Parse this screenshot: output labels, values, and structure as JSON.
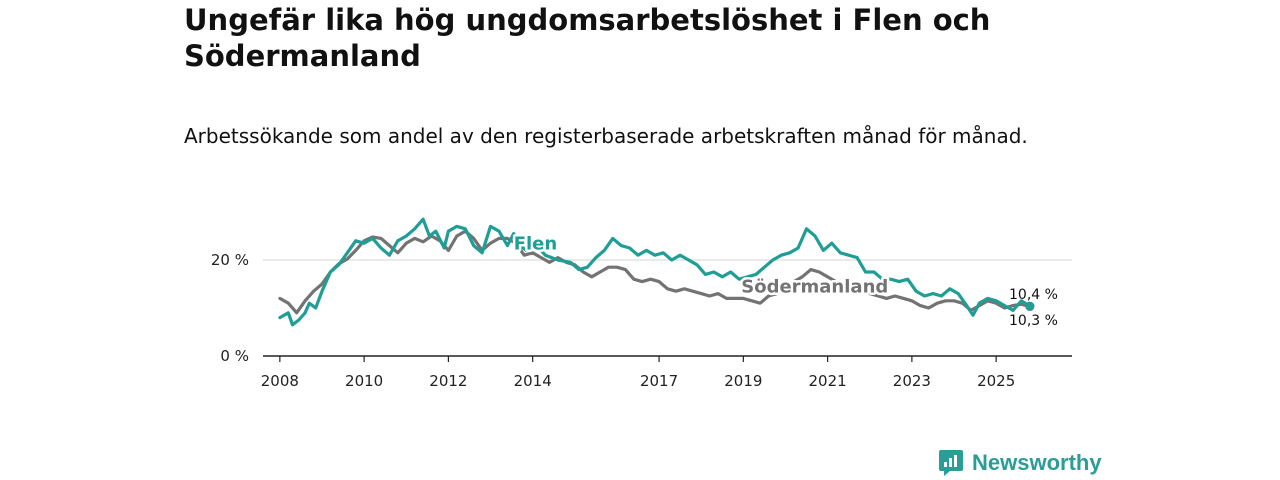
{
  "title": "Ungefär lika hög ungdomsarbetslöshet i Flen och Södermanland",
  "subtitle": "Arbetssökande som andel av den registerbaserade arbetskraften månad för månad.",
  "brand": {
    "name": "Newsworthy",
    "icon": "newsworthy-logo-icon",
    "color": "#2a9d96"
  },
  "chart_data": {
    "type": "line",
    "title": "Ungefär lika hög ungdomsarbetslöshet i Flen och Södermanland",
    "xlabel": "",
    "ylabel": "",
    "xlim": [
      2007.6,
      2026.8
    ],
    "ylim": [
      0,
      30
    ],
    "y_ticks": [
      {
        "value": 0,
        "label": "0 %"
      },
      {
        "value": 20,
        "label": "20 %"
      }
    ],
    "x_ticks": [
      {
        "value": 2008,
        "label": "2008"
      },
      {
        "value": 2010,
        "label": "2010"
      },
      {
        "value": 2012,
        "label": "2012"
      },
      {
        "value": 2014,
        "label": "2014"
      },
      {
        "value": 2017,
        "label": "2017"
      },
      {
        "value": 2019,
        "label": "2019"
      },
      {
        "value": 2021,
        "label": "2021"
      },
      {
        "value": 2023,
        "label": "2023"
      },
      {
        "value": 2025,
        "label": "2025"
      }
    ],
    "grid": true,
    "series": [
      {
        "name": "Södermanland",
        "label": "Södermanland",
        "color": "#737373",
        "end_label": "10,3 %",
        "points": [
          [
            2008.0,
            12.0
          ],
          [
            2008.2,
            11.0
          ],
          [
            2008.4,
            9.0
          ],
          [
            2008.6,
            11.5
          ],
          [
            2008.8,
            13.5
          ],
          [
            2009.0,
            15.0
          ],
          [
            2009.2,
            17.5
          ],
          [
            2009.4,
            19.2
          ],
          [
            2009.6,
            20.2
          ],
          [
            2009.8,
            22.0
          ],
          [
            2010.0,
            24.0
          ],
          [
            2010.2,
            24.8
          ],
          [
            2010.4,
            24.5
          ],
          [
            2010.6,
            23.0
          ],
          [
            2010.8,
            21.5
          ],
          [
            2011.0,
            23.5
          ],
          [
            2011.2,
            24.5
          ],
          [
            2011.4,
            23.8
          ],
          [
            2011.6,
            25.0
          ],
          [
            2011.8,
            24.0
          ],
          [
            2012.0,
            22.0
          ],
          [
            2012.2,
            25.0
          ],
          [
            2012.4,
            26.0
          ],
          [
            2012.6,
            24.5
          ],
          [
            2012.8,
            22.0
          ],
          [
            2013.0,
            23.5
          ],
          [
            2013.2,
            24.5
          ],
          [
            2013.4,
            24.5
          ],
          [
            2013.6,
            23.5
          ],
          [
            2013.8,
            21.0
          ],
          [
            2014.0,
            21.5
          ],
          [
            2014.2,
            20.5
          ],
          [
            2014.4,
            19.5
          ],
          [
            2014.6,
            20.5
          ],
          [
            2014.8,
            19.5
          ],
          [
            2015.0,
            19.0
          ],
          [
            2015.2,
            17.5
          ],
          [
            2015.4,
            16.5
          ],
          [
            2015.6,
            17.5
          ],
          [
            2015.8,
            18.5
          ],
          [
            2016.0,
            18.5
          ],
          [
            2016.2,
            18.0
          ],
          [
            2016.4,
            16.0
          ],
          [
            2016.6,
            15.5
          ],
          [
            2016.8,
            16.0
          ],
          [
            2017.0,
            15.5
          ],
          [
            2017.2,
            14.0
          ],
          [
            2017.4,
            13.5
          ],
          [
            2017.6,
            14.0
          ],
          [
            2017.8,
            13.5
          ],
          [
            2018.0,
            13.0
          ],
          [
            2018.2,
            12.5
          ],
          [
            2018.4,
            13.0
          ],
          [
            2018.6,
            12.0
          ],
          [
            2018.8,
            12.0
          ],
          [
            2019.0,
            12.0
          ],
          [
            2019.2,
            11.5
          ],
          [
            2019.4,
            11.0
          ],
          [
            2019.6,
            12.5
          ],
          [
            2019.8,
            13.0
          ],
          [
            2020.0,
            14.0
          ],
          [
            2020.2,
            15.5
          ],
          [
            2020.4,
            16.5
          ],
          [
            2020.6,
            18.0
          ],
          [
            2020.8,
            17.5
          ],
          [
            2021.0,
            16.5
          ],
          [
            2021.2,
            15.5
          ],
          [
            2021.4,
            14.5
          ],
          [
            2021.6,
            14.0
          ],
          [
            2021.8,
            13.5
          ],
          [
            2022.0,
            13.0
          ],
          [
            2022.2,
            12.5
          ],
          [
            2022.4,
            12.0
          ],
          [
            2022.6,
            12.5
          ],
          [
            2022.8,
            12.0
          ],
          [
            2023.0,
            11.5
          ],
          [
            2023.2,
            10.5
          ],
          [
            2023.4,
            10.0
          ],
          [
            2023.6,
            11.0
          ],
          [
            2023.8,
            11.5
          ],
          [
            2024.0,
            11.5
          ],
          [
            2024.2,
            11.0
          ],
          [
            2024.4,
            9.5
          ],
          [
            2024.6,
            10.5
          ],
          [
            2024.8,
            11.5
          ],
          [
            2025.0,
            11.0
          ],
          [
            2025.2,
            10.0
          ],
          [
            2025.4,
            10.5
          ],
          [
            2025.6,
            10.8
          ],
          [
            2025.8,
            10.3
          ]
        ]
      },
      {
        "name": "Flen",
        "label": "Flen",
        "color": "#1f9e96",
        "end_label": "10,4 %",
        "points": [
          [
            2008.0,
            8.0
          ],
          [
            2008.2,
            9.0
          ],
          [
            2008.3,
            6.5
          ],
          [
            2008.45,
            7.5
          ],
          [
            2008.6,
            9.0
          ],
          [
            2008.7,
            11.0
          ],
          [
            2008.85,
            10.0
          ],
          [
            2009.0,
            13.5
          ],
          [
            2009.2,
            17.5
          ],
          [
            2009.4,
            19.0
          ],
          [
            2009.6,
            21.5
          ],
          [
            2009.8,
            24.0
          ],
          [
            2010.0,
            23.5
          ],
          [
            2010.2,
            24.5
          ],
          [
            2010.4,
            22.5
          ],
          [
            2010.6,
            21.0
          ],
          [
            2010.8,
            24.0
          ],
          [
            2011.0,
            25.0
          ],
          [
            2011.2,
            26.5
          ],
          [
            2011.4,
            28.5
          ],
          [
            2011.55,
            25.0
          ],
          [
            2011.7,
            26.0
          ],
          [
            2011.9,
            22.5
          ],
          [
            2012.0,
            26.0
          ],
          [
            2012.2,
            27.0
          ],
          [
            2012.4,
            26.5
          ],
          [
            2012.6,
            23.0
          ],
          [
            2012.8,
            21.5
          ],
          [
            2013.0,
            27.0
          ],
          [
            2013.2,
            26.0
          ],
          [
            2013.4,
            23.0
          ],
          [
            2013.55,
            25.5
          ],
          [
            2013.7,
            23.0
          ],
          [
            2013.85,
            22.0
          ],
          [
            2014.0,
            24.0
          ],
          [
            2014.3,
            21.0
          ],
          [
            2014.6,
            20.0
          ],
          [
            2014.9,
            19.5
          ],
          [
            2015.1,
            18.0
          ],
          [
            2015.3,
            18.5
          ],
          [
            2015.5,
            20.5
          ],
          [
            2015.7,
            22.0
          ],
          [
            2015.9,
            24.5
          ],
          [
            2016.1,
            23.0
          ],
          [
            2016.3,
            22.5
          ],
          [
            2016.5,
            21.0
          ],
          [
            2016.7,
            22.0
          ],
          [
            2016.9,
            21.0
          ],
          [
            2017.1,
            21.5
          ],
          [
            2017.3,
            20.0
          ],
          [
            2017.5,
            21.0
          ],
          [
            2017.7,
            20.0
          ],
          [
            2017.9,
            19.0
          ],
          [
            2018.1,
            17.0
          ],
          [
            2018.3,
            17.5
          ],
          [
            2018.5,
            16.5
          ],
          [
            2018.7,
            17.5
          ],
          [
            2018.9,
            16.0
          ],
          [
            2019.1,
            16.5
          ],
          [
            2019.3,
            17.0
          ],
          [
            2019.5,
            18.5
          ],
          [
            2019.7,
            20.0
          ],
          [
            2019.9,
            21.0
          ],
          [
            2020.1,
            21.5
          ],
          [
            2020.3,
            22.5
          ],
          [
            2020.5,
            26.5
          ],
          [
            2020.7,
            25.0
          ],
          [
            2020.9,
            22.0
          ],
          [
            2021.1,
            23.5
          ],
          [
            2021.3,
            21.5
          ],
          [
            2021.5,
            21.0
          ],
          [
            2021.7,
            20.5
          ],
          [
            2021.9,
            17.5
          ],
          [
            2022.1,
            17.5
          ],
          [
            2022.3,
            16.0
          ],
          [
            2022.5,
            16.0
          ],
          [
            2022.7,
            15.5
          ],
          [
            2022.9,
            16.0
          ],
          [
            2023.1,
            13.5
          ],
          [
            2023.3,
            12.5
          ],
          [
            2023.5,
            13.0
          ],
          [
            2023.7,
            12.5
          ],
          [
            2023.9,
            14.0
          ],
          [
            2024.1,
            13.0
          ],
          [
            2024.3,
            10.5
          ],
          [
            2024.45,
            8.5
          ],
          [
            2024.6,
            11.0
          ],
          [
            2024.8,
            12.0
          ],
          [
            2025.0,
            11.5
          ],
          [
            2025.2,
            10.5
          ],
          [
            2025.4,
            9.5
          ],
          [
            2025.6,
            11.5
          ],
          [
            2025.8,
            10.4
          ]
        ]
      }
    ]
  }
}
